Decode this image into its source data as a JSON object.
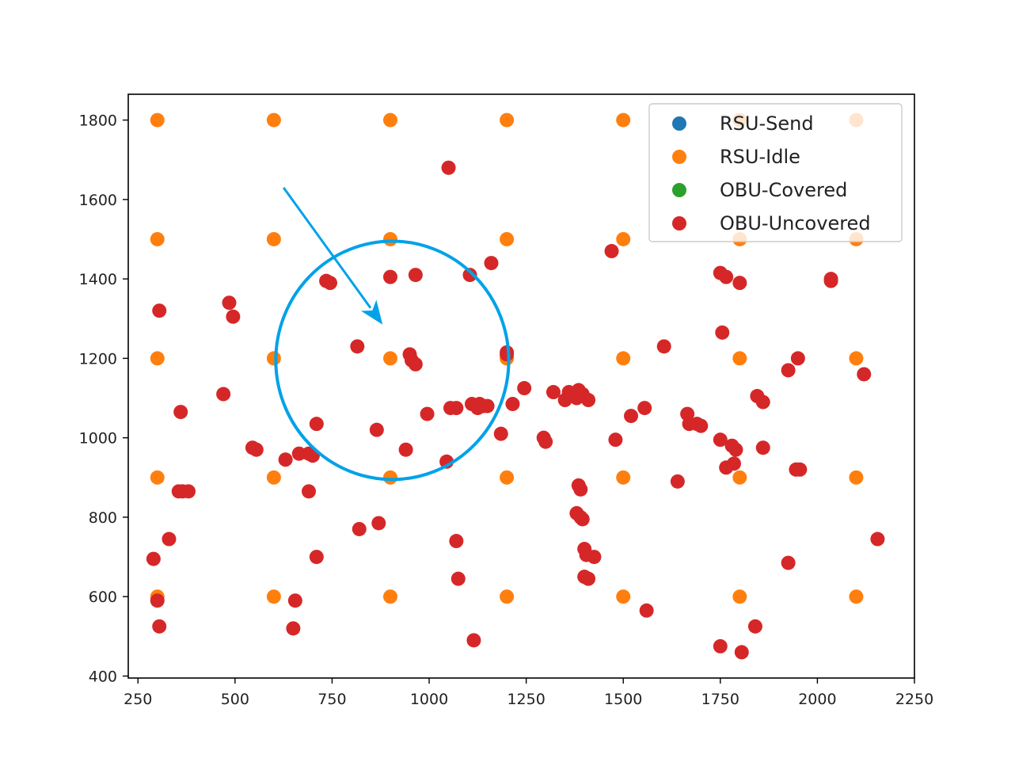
{
  "chart_data": {
    "type": "scatter",
    "xlim": [
      225,
      2250
    ],
    "ylim": [
      395,
      1865
    ],
    "xticks": [
      250,
      500,
      750,
      1000,
      1250,
      1500,
      1750,
      2000,
      2250
    ],
    "yticks": [
      400,
      600,
      800,
      1000,
      1200,
      1400,
      1600,
      1800
    ],
    "grid": false,
    "legend_position": "top-right",
    "series": [
      {
        "name": "RSU-Send",
        "color": "#1f77b4",
        "points": []
      },
      {
        "name": "RSU-Idle",
        "color": "#ff7f0e",
        "points": [
          [
            300,
            1800
          ],
          [
            600,
            1800
          ],
          [
            900,
            1800
          ],
          [
            1200,
            1800
          ],
          [
            1500,
            1800
          ],
          [
            1800,
            1800
          ],
          [
            2100,
            1800
          ],
          [
            300,
            1500
          ],
          [
            600,
            1500
          ],
          [
            900,
            1500
          ],
          [
            1200,
            1500
          ],
          [
            1500,
            1500
          ],
          [
            1800,
            1500
          ],
          [
            2100,
            1500
          ],
          [
            300,
            1200
          ],
          [
            600,
            1200
          ],
          [
            900,
            1200
          ],
          [
            1200,
            1200
          ],
          [
            1500,
            1200
          ],
          [
            1800,
            1200
          ],
          [
            2100,
            1200
          ],
          [
            300,
            900
          ],
          [
            600,
            900
          ],
          [
            900,
            900
          ],
          [
            1200,
            900
          ],
          [
            1500,
            900
          ],
          [
            1800,
            900
          ],
          [
            2100,
            900
          ],
          [
            300,
            600
          ],
          [
            600,
            600
          ],
          [
            900,
            600
          ],
          [
            1200,
            600
          ],
          [
            1500,
            600
          ],
          [
            1800,
            600
          ],
          [
            2100,
            600
          ]
        ]
      },
      {
        "name": "OBU-Covered",
        "color": "#2ca02c",
        "points": []
      },
      {
        "name": "OBU-Uncovered",
        "color": "#d62728",
        "points": [
          [
            1050,
            1680
          ],
          [
            1160,
            1440
          ],
          [
            1470,
            1470
          ],
          [
            1750,
            1415
          ],
          [
            1765,
            1405
          ],
          [
            1800,
            1390
          ],
          [
            2035,
            1400
          ],
          [
            2035,
            1395
          ],
          [
            305,
            1320
          ],
          [
            485,
            1340
          ],
          [
            495,
            1305
          ],
          [
            735,
            1395
          ],
          [
            745,
            1390
          ],
          [
            900,
            1405
          ],
          [
            965,
            1410
          ],
          [
            1105,
            1410
          ],
          [
            815,
            1230
          ],
          [
            950,
            1210
          ],
          [
            955,
            1195
          ],
          [
            965,
            1185
          ],
          [
            1200,
            1215
          ],
          [
            1200,
            1210
          ],
          [
            1605,
            1230
          ],
          [
            1755,
            1265
          ],
          [
            1950,
            1200
          ],
          [
            1925,
            1170
          ],
          [
            2120,
            1160
          ],
          [
            1245,
            1125
          ],
          [
            1215,
            1085
          ],
          [
            1320,
            1115
          ],
          [
            1350,
            1095
          ],
          [
            1360,
            1115
          ],
          [
            1380,
            1100
          ],
          [
            1385,
            1120
          ],
          [
            1395,
            1110
          ],
          [
            1410,
            1095
          ],
          [
            470,
            1110
          ],
          [
            360,
            1065
          ],
          [
            995,
            1060
          ],
          [
            1055,
            1075
          ],
          [
            1070,
            1075
          ],
          [
            1110,
            1085
          ],
          [
            1130,
            1085
          ],
          [
            1125,
            1075
          ],
          [
            1140,
            1080
          ],
          [
            1150,
            1080
          ],
          [
            1520,
            1055
          ],
          [
            1555,
            1075
          ],
          [
            1665,
            1060
          ],
          [
            1670,
            1035
          ],
          [
            1690,
            1035
          ],
          [
            1700,
            1030
          ],
          [
            1845,
            1105
          ],
          [
            1860,
            1090
          ],
          [
            710,
            1035
          ],
          [
            865,
            1020
          ],
          [
            545,
            975
          ],
          [
            555,
            970
          ],
          [
            630,
            945
          ],
          [
            665,
            960
          ],
          [
            690,
            960
          ],
          [
            700,
            955
          ],
          [
            940,
            970
          ],
          [
            1045,
            940
          ],
          [
            1185,
            1010
          ],
          [
            1295,
            1000
          ],
          [
            1300,
            990
          ],
          [
            1480,
            995
          ],
          [
            1750,
            995
          ],
          [
            1780,
            980
          ],
          [
            1790,
            970
          ],
          [
            1860,
            975
          ],
          [
            1765,
            925
          ],
          [
            1785,
            935
          ],
          [
            1945,
            920
          ],
          [
            1955,
            920
          ],
          [
            355,
            865
          ],
          [
            365,
            865
          ],
          [
            380,
            865
          ],
          [
            690,
            865
          ],
          [
            1385,
            880
          ],
          [
            1390,
            870
          ],
          [
            1640,
            890
          ],
          [
            330,
            745
          ],
          [
            290,
            695
          ],
          [
            710,
            700
          ],
          [
            820,
            770
          ],
          [
            870,
            785
          ],
          [
            1070,
            740
          ],
          [
            1075,
            645
          ],
          [
            1380,
            810
          ],
          [
            1390,
            800
          ],
          [
            1395,
            795
          ],
          [
            1400,
            720
          ],
          [
            1405,
            705
          ],
          [
            1425,
            700
          ],
          [
            1400,
            650
          ],
          [
            1410,
            645
          ],
          [
            1925,
            685
          ],
          [
            2155,
            745
          ],
          [
            300,
            590
          ],
          [
            655,
            590
          ],
          [
            305,
            525
          ],
          [
            650,
            520
          ],
          [
            1115,
            490
          ],
          [
            1560,
            565
          ],
          [
            1750,
            475
          ],
          [
            1805,
            460
          ],
          [
            1840,
            525
          ]
        ]
      }
    ]
  },
  "annotation": {
    "arrow_color": "#00a2e8",
    "circle_color": "#00a2e8",
    "circle_center": [
      905,
      1195
    ],
    "circle_radius": 300,
    "arrow_from": [
      625,
      1630
    ],
    "arrow_to": [
      880,
      1285
    ]
  }
}
